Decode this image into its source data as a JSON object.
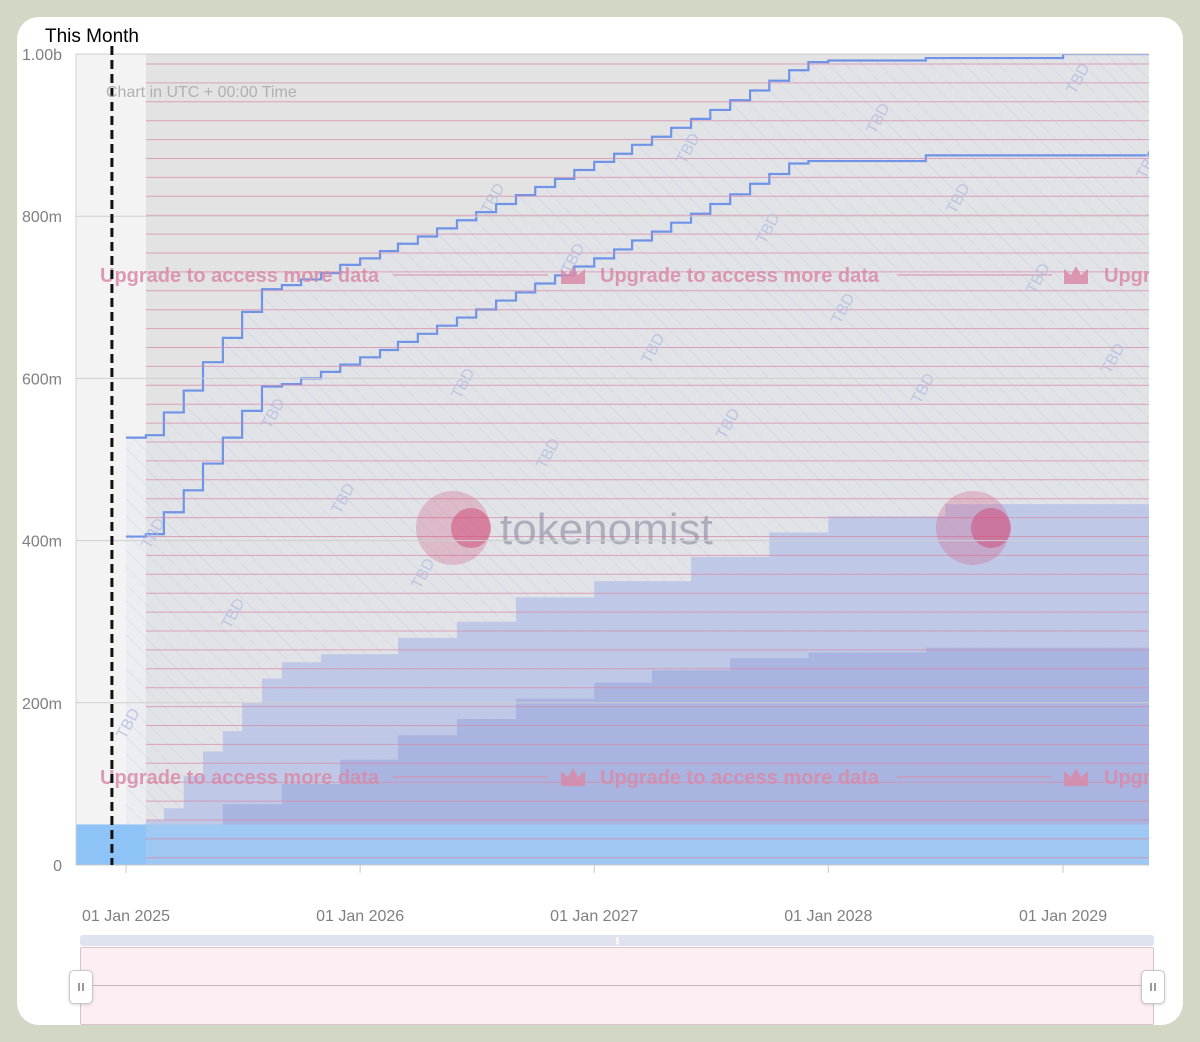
{
  "chart_data": {
    "type": "area",
    "title": "This Month",
    "subtitle": "Chart in UTC + 00:00 Time",
    "ylabel": "",
    "xlabel": "",
    "ylim": [
      0,
      1000000000
    ],
    "y_ticks": [
      {
        "value": 0,
        "label": "0"
      },
      {
        "value": 200000000,
        "label": "200m"
      },
      {
        "value": 400000000,
        "label": "400m"
      },
      {
        "value": 600000000,
        "label": "600m"
      },
      {
        "value": 800000000,
        "label": "800m"
      },
      {
        "value": 1000000000,
        "label": "1.00b"
      }
    ],
    "xlim": [
      "2024-10-15",
      "2029-05-15"
    ],
    "x_ticks": [
      {
        "value": "2025-01-01",
        "label": "01 Jan 2025"
      },
      {
        "value": "2026-01-01",
        "label": "01 Jan 2026"
      },
      {
        "value": "2027-01-01",
        "label": "01 Jan 2027"
      },
      {
        "value": "2028-01-01",
        "label": "01 Jan 2028"
      },
      {
        "value": "2029-01-01",
        "label": "01 Jan 2029"
      }
    ],
    "marker_date": "2024-12-10",
    "grid": true,
    "legend": "none",
    "series": [
      {
        "type": "area",
        "points": [
          [
            "2024-10-15",
            50000000
          ],
          [
            "2025-02-01",
            50000000
          ],
          [
            "2025-06-01",
            50000000
          ],
          [
            "2026-01-01",
            50000000
          ],
          [
            "2029-05-15",
            50000000
          ]
        ]
      },
      {
        "type": "area",
        "points": [
          [
            "2025-02-01",
            55000000
          ],
          [
            "2025-03-01",
            70000000
          ],
          [
            "2025-04-01",
            110000000
          ],
          [
            "2025-05-01",
            140000000
          ],
          [
            "2025-06-01",
            165000000
          ],
          [
            "2025-07-01",
            200000000
          ],
          [
            "2025-08-01",
            230000000
          ],
          [
            "2025-09-01",
            250000000
          ],
          [
            "2025-11-01",
            260000000
          ],
          [
            "2026-03-01",
            280000000
          ],
          [
            "2026-06-01",
            300000000
          ],
          [
            "2026-09-01",
            330000000
          ],
          [
            "2027-01-01",
            350000000
          ],
          [
            "2027-06-01",
            380000000
          ],
          [
            "2027-10-01",
            410000000
          ],
          [
            "2028-01-01",
            430000000
          ],
          [
            "2028-07-01",
            445000000
          ],
          [
            "2029-05-15",
            455000000
          ]
        ]
      },
      {
        "type": "area",
        "points": [
          [
            "2025-02-01",
            50000000
          ],
          [
            "2025-06-01",
            75000000
          ],
          [
            "2025-09-01",
            100000000
          ],
          [
            "2025-12-01",
            130000000
          ],
          [
            "2026-03-01",
            160000000
          ],
          [
            "2026-06-01",
            180000000
          ],
          [
            "2026-09-01",
            205000000
          ],
          [
            "2027-01-01",
            225000000
          ],
          [
            "2027-04-01",
            240000000
          ],
          [
            "2027-08-01",
            255000000
          ],
          [
            "2027-12-01",
            262000000
          ],
          [
            "2028-06-01",
            268000000
          ],
          [
            "2029-05-15",
            275000000
          ]
        ]
      },
      {
        "type": "line",
        "points": [
          [
            "2025-01-01",
            527000000
          ],
          [
            "2025-02-01",
            530000000
          ],
          [
            "2025-03-01",
            558000000
          ],
          [
            "2025-04-01",
            585000000
          ],
          [
            "2025-05-01",
            620000000
          ],
          [
            "2025-06-01",
            650000000
          ],
          [
            "2025-07-01",
            682000000
          ],
          [
            "2025-08-01",
            710000000
          ],
          [
            "2025-09-01",
            715000000
          ],
          [
            "2025-10-01",
            722000000
          ],
          [
            "2025-11-01",
            730000000
          ],
          [
            "2025-12-01",
            740000000
          ],
          [
            "2026-01-01",
            748000000
          ],
          [
            "2026-02-01",
            757000000
          ],
          [
            "2026-03-01",
            766000000
          ],
          [
            "2026-04-01",
            775000000
          ],
          [
            "2026-05-01",
            785000000
          ],
          [
            "2026-06-01",
            795000000
          ],
          [
            "2026-07-01",
            805000000
          ],
          [
            "2026-08-01",
            815000000
          ],
          [
            "2026-09-01",
            826000000
          ],
          [
            "2026-10-01",
            836000000
          ],
          [
            "2026-11-01",
            846000000
          ],
          [
            "2026-12-01",
            857000000
          ],
          [
            "2027-01-01",
            867000000
          ],
          [
            "2027-02-01",
            877000000
          ],
          [
            "2027-03-01",
            888000000
          ],
          [
            "2027-04-01",
            898000000
          ],
          [
            "2027-05-01",
            909000000
          ],
          [
            "2027-06-01",
            920000000
          ],
          [
            "2027-07-01",
            931000000
          ],
          [
            "2027-08-01",
            943000000
          ],
          [
            "2027-09-01",
            955000000
          ],
          [
            "2027-10-01",
            967000000
          ],
          [
            "2027-11-01",
            980000000
          ],
          [
            "2027-12-01",
            990000000
          ],
          [
            "2028-01-01",
            992000000
          ],
          [
            "2028-06-01",
            995000000
          ],
          [
            "2029-01-01",
            1000000000
          ],
          [
            "2029-05-15",
            1000000000
          ]
        ]
      },
      {
        "type": "line",
        "points": [
          [
            "2025-01-01",
            405000000
          ],
          [
            "2025-02-01",
            408000000
          ],
          [
            "2025-03-01",
            435000000
          ],
          [
            "2025-04-01",
            462000000
          ],
          [
            "2025-05-01",
            495000000
          ],
          [
            "2025-06-01",
            527000000
          ],
          [
            "2025-07-01",
            560000000
          ],
          [
            "2025-08-01",
            590000000
          ],
          [
            "2025-09-01",
            593000000
          ],
          [
            "2025-10-01",
            600000000
          ],
          [
            "2025-11-01",
            608000000
          ],
          [
            "2025-12-01",
            617000000
          ],
          [
            "2026-01-01",
            626000000
          ],
          [
            "2026-02-01",
            635000000
          ],
          [
            "2026-03-01",
            645000000
          ],
          [
            "2026-04-01",
            655000000
          ],
          [
            "2026-05-01",
            665000000
          ],
          [
            "2026-06-01",
            675000000
          ],
          [
            "2026-07-01",
            685000000
          ],
          [
            "2026-08-01",
            696000000
          ],
          [
            "2026-09-01",
            706000000
          ],
          [
            "2026-10-01",
            717000000
          ],
          [
            "2026-11-01",
            727000000
          ],
          [
            "2026-12-01",
            738000000
          ],
          [
            "2027-01-01",
            748000000
          ],
          [
            "2027-02-01",
            759000000
          ],
          [
            "2027-03-01",
            770000000
          ],
          [
            "2027-04-01",
            781000000
          ],
          [
            "2027-05-01",
            792000000
          ],
          [
            "2027-06-01",
            803000000
          ],
          [
            "2027-07-01",
            815000000
          ],
          [
            "2027-08-01",
            827000000
          ],
          [
            "2027-09-01",
            840000000
          ],
          [
            "2027-10-01",
            852000000
          ],
          [
            "2027-11-01",
            865000000
          ],
          [
            "2027-12-01",
            868000000
          ],
          [
            "2028-06-01",
            875000000
          ],
          [
            "2029-05-15",
            880000000
          ]
        ]
      }
    ],
    "overlay": {
      "watermark": "tokenomist",
      "notice": "Upgrade to access more data",
      "tag": "TBD"
    }
  }
}
